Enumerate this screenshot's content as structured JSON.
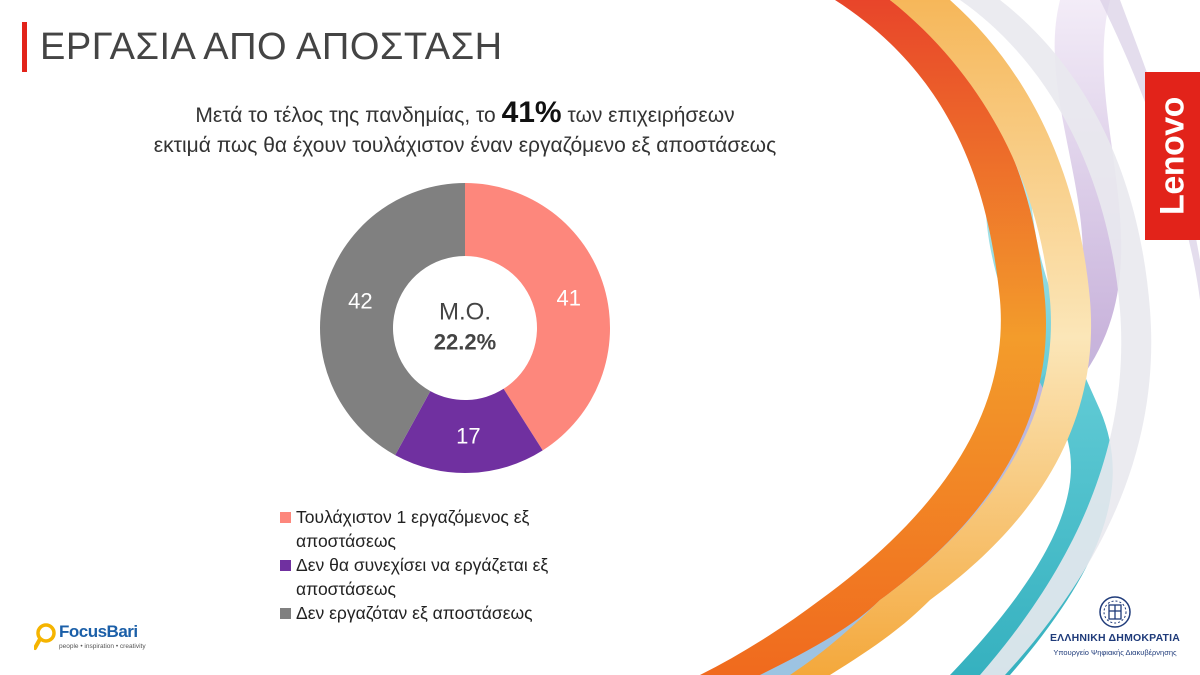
{
  "page": {
    "title": "ΕΡΓΑΣΙΑ ΑΠΟ ΑΠΟΣΤΑΣΗ",
    "headline": {
      "before": "Μετά το τέλος της πανδημίας, το",
      "highlight": "41%",
      "after": "των επιχειρήσεων",
      "line2": "εκτιμά πως θα έχουν τουλάχιστον έναν εργαζόμενο εξ αποστάσεως"
    }
  },
  "chart_data": {
    "type": "pie",
    "donut": true,
    "title": "",
    "center_label": "Μ.Ο.",
    "center_value": "22.2%",
    "categories": [
      "Τουλάχιστον 1 εργαζόμενος εξ αποστάσεως",
      "Δεν θα συνεχίσει να εργάζεται εξ αποστάσεως",
      "Δεν εργαζόταν εξ αποστάσεως"
    ],
    "values": [
      41,
      17,
      42
    ],
    "value_labels": [
      "41",
      "17",
      "42"
    ],
    "colors": [
      "#fd877c",
      "#7030a0",
      "#808080"
    ],
    "legend_position": "bottom"
  },
  "legend": [
    {
      "line1": "Τουλάχιστον 1 εργαζόμενος εξ",
      "line2": "αποστάσεως"
    },
    {
      "line1": "Δεν θα συνεχίσει να εργάζεται εξ",
      "line2": "αποστάσεως"
    },
    {
      "line1": "Δεν εργαζόταν εξ αποστάσεως",
      "line2": ""
    }
  ],
  "logos": {
    "lenovo": "Lenovo",
    "focusbari": {
      "name": "FocusBari",
      "tagline": "people • inspiration • creativity"
    },
    "greece": {
      "name": "ΕΛΛΗΝΙΚΗ ΔΗΜΟΚΡΑΤΙΑ",
      "ministry": "Υπουργείο Ψηφιακής Διακυβέρνησης",
      "emblem_icon": "greek-emblem-icon"
    }
  },
  "theme": {
    "accent": "#e2231a",
    "lenovo_red": "#e2231a",
    "focusbari_blue": "#1b5fa8",
    "greece_blue": "#1f3b7a"
  }
}
